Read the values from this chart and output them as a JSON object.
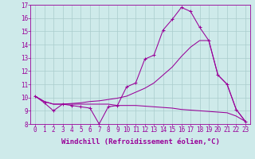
{
  "xlabel": "Windchill (Refroidissement éolien,°C)",
  "x_hours": [
    0,
    1,
    2,
    3,
    4,
    5,
    6,
    7,
    8,
    9,
    10,
    11,
    12,
    13,
    14,
    15,
    16,
    17,
    18,
    19,
    20,
    21,
    22,
    23
  ],
  "line_peaked": [
    10.1,
    9.6,
    9.0,
    9.5,
    9.4,
    9.3,
    9.2,
    8.0,
    9.3,
    9.4,
    10.8,
    11.1,
    12.9,
    13.2,
    15.1,
    15.9,
    16.8,
    16.5,
    15.3,
    14.3,
    11.7,
    11.0,
    9.1,
    8.2
  ],
  "line_diag_x": [
    0,
    1,
    2,
    3,
    4,
    5,
    6,
    7,
    8,
    9,
    10,
    11,
    12,
    13,
    14,
    15,
    16,
    17,
    18,
    19,
    20,
    21,
    22,
    23
  ],
  "line_diag_y": [
    10.1,
    9.7,
    9.5,
    9.5,
    9.55,
    9.6,
    9.7,
    9.75,
    9.85,
    9.95,
    10.1,
    10.4,
    10.7,
    11.1,
    11.7,
    12.3,
    13.1,
    13.8,
    14.3,
    14.3,
    11.7,
    11.0,
    9.1,
    8.2
  ],
  "line_lower_x": [
    0,
    1,
    2,
    3,
    4,
    5,
    6,
    7,
    8,
    9,
    10,
    11,
    12,
    13,
    14,
    15,
    16,
    17,
    18,
    19,
    20,
    21,
    22,
    23
  ],
  "line_lower_y": [
    10.1,
    9.7,
    9.5,
    9.5,
    9.5,
    9.5,
    9.5,
    9.5,
    9.5,
    9.4,
    9.4,
    9.4,
    9.35,
    9.3,
    9.25,
    9.2,
    9.1,
    9.05,
    9.0,
    8.95,
    8.9,
    8.85,
    8.6,
    8.2
  ],
  "line_color": "#990099",
  "bg_color": "#ceeaea",
  "grid_color": "#aacccc",
  "ylim": [
    8,
    17
  ],
  "yticks": [
    8,
    9,
    10,
    11,
    12,
    13,
    14,
    15,
    16,
    17
  ],
  "tick_fontsize": 5.5,
  "label_fontsize": 6.5
}
